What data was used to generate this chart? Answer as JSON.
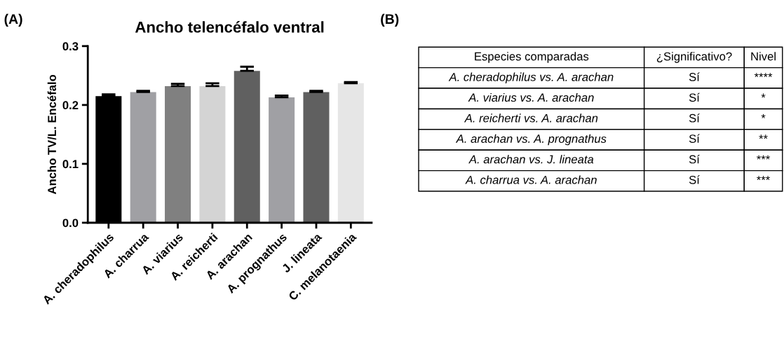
{
  "chart_data": [
    {
      "type": "bar",
      "title": "Ancho telencéfalo ventral",
      "ylabel": "Ancho TV/L. Encéfalo",
      "categories": [
        "A. cheradophilus",
        "A. charrua",
        "A. viarius",
        "A. reicherti",
        "A. arachan",
        "A. prognathus",
        "J. lineata",
        "C. melanotaenia"
      ],
      "values": [
        0.215,
        0.222,
        0.232,
        0.232,
        0.258,
        0.213,
        0.222,
        0.237
      ],
      "errors": [
        [
          0.215,
          0.218
        ],
        [
          0.222,
          0.224
        ],
        [
          0.232,
          0.236
        ],
        [
          0.232,
          0.237
        ],
        [
          0.258,
          0.265
        ],
        [
          0.213,
          0.216
        ],
        [
          0.222,
          0.224
        ],
        [
          0.237,
          0.239
        ]
      ],
      "colors": [
        "#000000",
        "#a0a0a4",
        "#808080",
        "#d4d4d4",
        "#606060",
        "#a0a0a4",
        "#606060",
        "#e6e6e6"
      ],
      "ylim": [
        0,
        0.3
      ],
      "yticks": [
        {
          "value": 0,
          "label": "0.0"
        },
        0.1,
        0.2,
        0.3
      ],
      "grid": false,
      "annotations": [
        "(A)"
      ]
    },
    {
      "type": "other",
      "title": "(B)",
      "categories": [
        "Especies comparadas",
        "¿Significativo?",
        "Nivel"
      ],
      "annotations": [
        "A. cheradophilus vs. A. arachan",
        "Sí",
        "****",
        "A. viarius vs. A. arachan",
        "Sí",
        "*",
        "A. reicherti vs. A. arachan",
        "Sí",
        "*",
        "A. arachan vs. A. prognathus",
        "Sí",
        "**",
        "A. arachan vs. J. lineata",
        "Sí",
        "***",
        "A. charrua vs. A. arachan",
        "Sí",
        "***"
      ]
    }
  ]
}
